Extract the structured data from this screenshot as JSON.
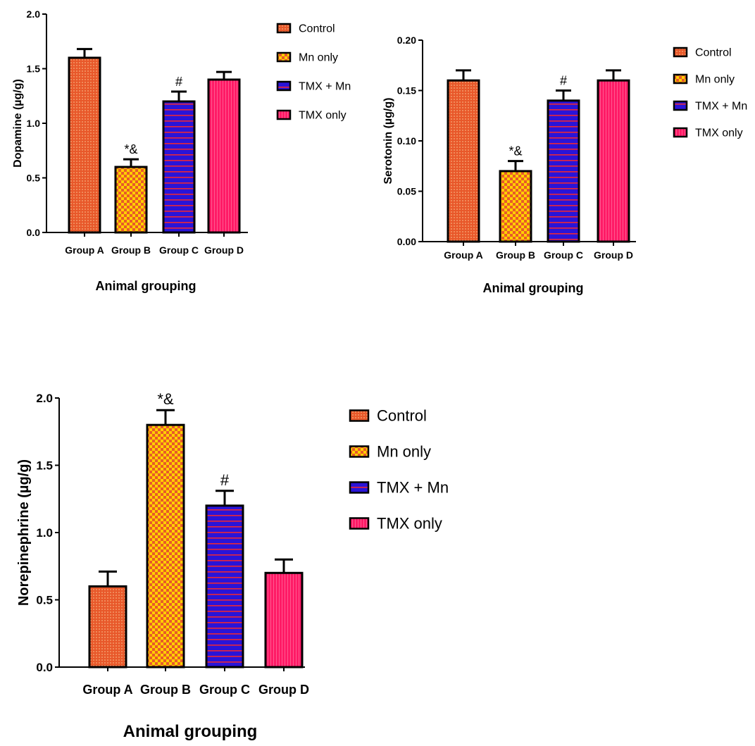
{
  "series_styles": [
    {
      "name": "Control",
      "fill": "#E8582A",
      "pattern": "dots"
    },
    {
      "name": "Mn only",
      "fill": "#FFD000",
      "pattern": "checker",
      "pattern_color": "#E85A2A"
    },
    {
      "name": "TMX + Mn",
      "fill": "#2A14D8",
      "pattern": "hlines",
      "pattern_color": "#E8283A"
    },
    {
      "name": "TMX only",
      "fill": "#FF1A66",
      "pattern": "vlines",
      "pattern_color": "#FF4C8C"
    }
  ],
  "chart_data": [
    {
      "type": "bar",
      "categories": [
        "Group A",
        "Group B",
        "Group C",
        "Group D"
      ],
      "values": [
        1.6,
        0.6,
        1.2,
        1.4
      ],
      "error": [
        0.08,
        0.07,
        0.09,
        0.07
      ],
      "annotations": [
        "",
        "*&",
        "#",
        ""
      ],
      "ylabel": "Dopamine (µg/g)",
      "xlabel": "Animal grouping",
      "ylim": [
        0,
        2.0
      ],
      "yticks": [
        "0.0",
        "0.5",
        "1.0",
        "1.5",
        "2.0"
      ],
      "legend": [
        "Control",
        "Mn only",
        "TMX + Mn",
        "TMX only"
      ],
      "legend_position": "right",
      "grid": false
    },
    {
      "type": "bar",
      "categories": [
        "Group A",
        "Group B",
        "Group C",
        "Group D"
      ],
      "values": [
        0.16,
        0.07,
        0.14,
        0.16
      ],
      "error": [
        0.01,
        0.01,
        0.01,
        0.01
      ],
      "annotations": [
        "",
        "*&",
        "#",
        ""
      ],
      "ylabel": "Serotonin (µg/g)",
      "xlabel": "Animal grouping",
      "ylim": [
        0,
        0.2
      ],
      "yticks": [
        "0.00",
        "0.05",
        "0.10",
        "0.15",
        "0.20"
      ],
      "legend": [
        "Control",
        "Mn only",
        "TMX + Mn",
        "TMX only"
      ],
      "legend_position": "right",
      "grid": false
    },
    {
      "type": "bar",
      "categories": [
        "Group A",
        "Group B",
        "Group C",
        "Group D"
      ],
      "values": [
        0.6,
        1.8,
        1.2,
        0.7
      ],
      "error": [
        0.11,
        0.11,
        0.11,
        0.1
      ],
      "annotations": [
        "",
        "*&",
        "#",
        ""
      ],
      "ylabel": "Norepinephrine (µg/g)",
      "xlabel": "Animal grouping",
      "ylim": [
        0,
        2.0
      ],
      "yticks": [
        "0.0",
        "0.5",
        "1.0",
        "1.5",
        "2.0"
      ],
      "legend": [
        "Control",
        "Mn only",
        "TMX + Mn",
        "TMX only"
      ],
      "legend_position": "right",
      "grid": false
    }
  ]
}
